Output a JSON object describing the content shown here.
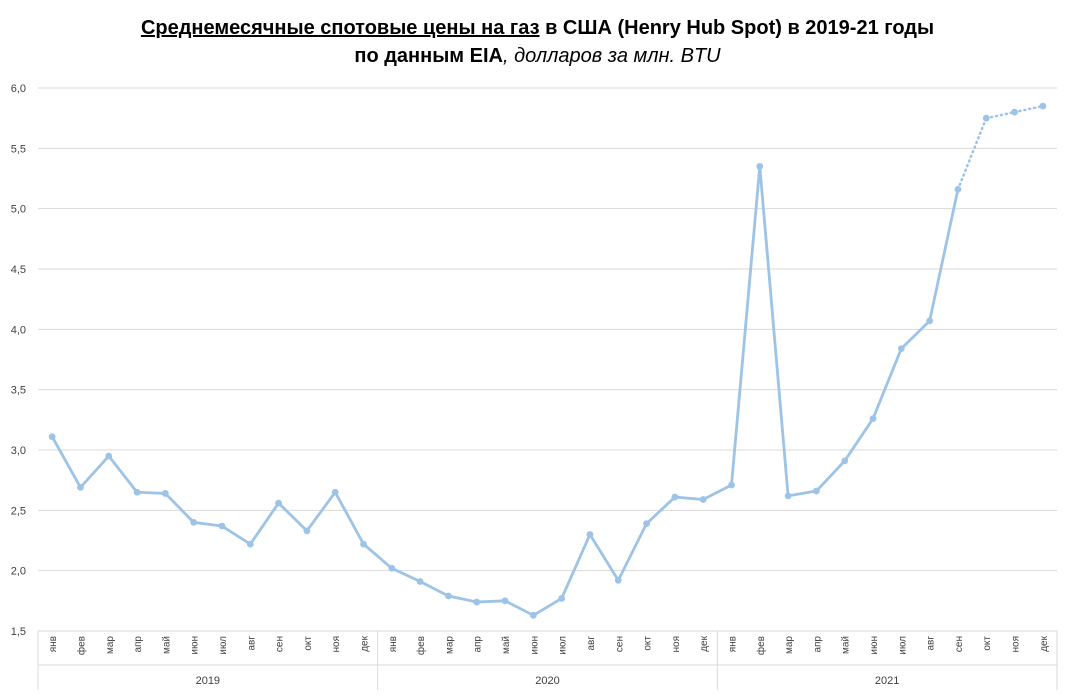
{
  "title": {
    "line1_underlined": "Среднемесячные спотовые цены на газ",
    "line1_rest": " в США (Henry Hub Spot) в 2019-21 годы",
    "line2_bold": "по данным EIA",
    "line2_italic": ", долларов за млн. BTU"
  },
  "chart_data": {
    "type": "line",
    "title": "Среднемесячные спотовые цены на газ в США (Henry Hub Spot) в 2019-21 годы по данным EIA, долларов за млн. BTU",
    "xlabel": "",
    "ylabel": "",
    "ylim": [
      1.5,
      6.0
    ],
    "yticks": [
      "1,5",
      "2,0",
      "2,5",
      "3,0",
      "3,5",
      "4,0",
      "4,5",
      "5,0",
      "5,5",
      "6,0"
    ],
    "grid": true,
    "legend": "none",
    "series_color": "#9dc3e6",
    "months": [
      "янв",
      "фев",
      "мар",
      "апр",
      "май",
      "июн",
      "июл",
      "авг",
      "сен",
      "окт",
      "ноя",
      "дек"
    ],
    "years": [
      "2019",
      "2020",
      "2021"
    ],
    "series": [
      {
        "values": [
          3.11,
          2.69,
          2.95,
          2.65,
          2.64,
          2.4,
          2.37,
          2.22,
          2.56,
          2.33,
          2.65,
          2.22,
          2.02,
          1.91,
          1.79,
          1.74,
          1.75,
          1.63,
          1.77,
          2.3,
          1.92,
          2.39,
          2.61,
          2.59,
          2.71,
          5.35,
          2.62,
          2.66,
          2.91,
          3.26,
          3.84,
          4.07,
          5.16,
          5.75,
          5.8,
          5.85
        ],
        "estimated_from_index": 32
      }
    ]
  }
}
